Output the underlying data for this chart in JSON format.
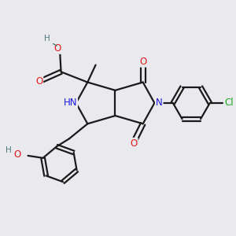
{
  "background_color": "#eaeaee",
  "bond_color": "#1a1a1a",
  "bond_width": 1.6,
  "atom_colors": {
    "C": "#1a1a1a",
    "N": "#1a1ae0",
    "O": "#e01a1a",
    "H": "#4a7878",
    "Cl": "#18a818"
  },
  "font_size_atom": 8.5
}
